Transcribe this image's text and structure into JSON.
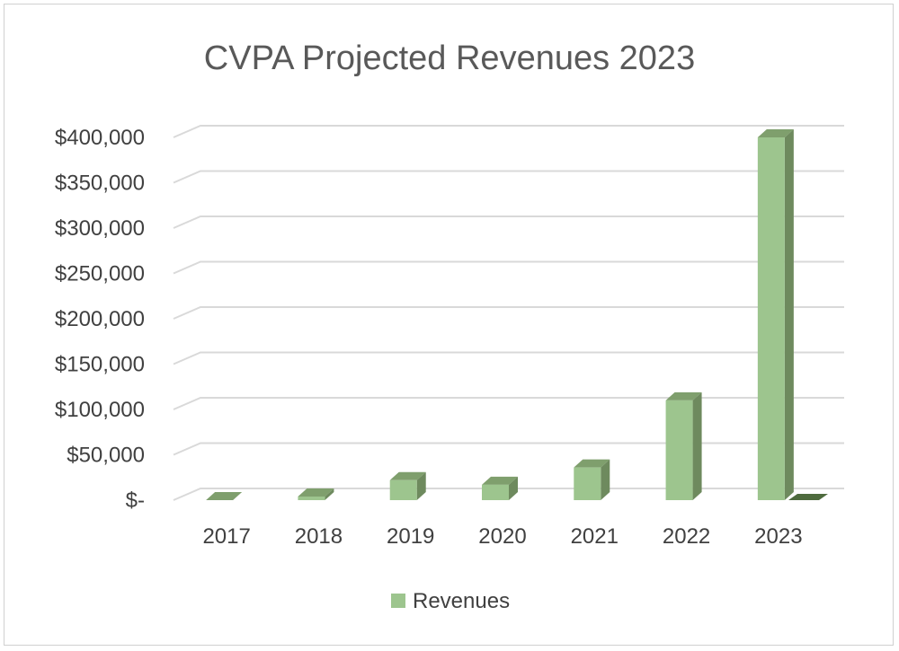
{
  "chart_data": {
    "type": "bar",
    "title": "CVPA Projected Revenues 2023",
    "xlabel": "",
    "ylabel": "",
    "categories": [
      "2017",
      "2018",
      "2019",
      "2020",
      "2021",
      "2022",
      "2023"
    ],
    "series": [
      {
        "name": "Revenues",
        "values": [
          0,
          4000,
          22000,
          17000,
          36000,
          110000,
          400000
        ]
      }
    ],
    "ylim": [
      0,
      400000
    ],
    "ytick_values": [
      0,
      50000,
      100000,
      150000,
      200000,
      250000,
      300000,
      350000,
      400000
    ],
    "ytick_labels": [
      "$-",
      "$50,000",
      "$100,000",
      "$150,000",
      "$200,000",
      "$250,000",
      "$300,000",
      "$350,000",
      "$400,000"
    ],
    "grid": true,
    "legend_position": "bottom",
    "colors": {
      "bar_front": "#9dc58e",
      "bar_side": "#6e8a5e",
      "bar_top": "#7f9f6d",
      "gridline": "#d9d9d9",
      "floor_mark": "#4e6b3e"
    }
  }
}
